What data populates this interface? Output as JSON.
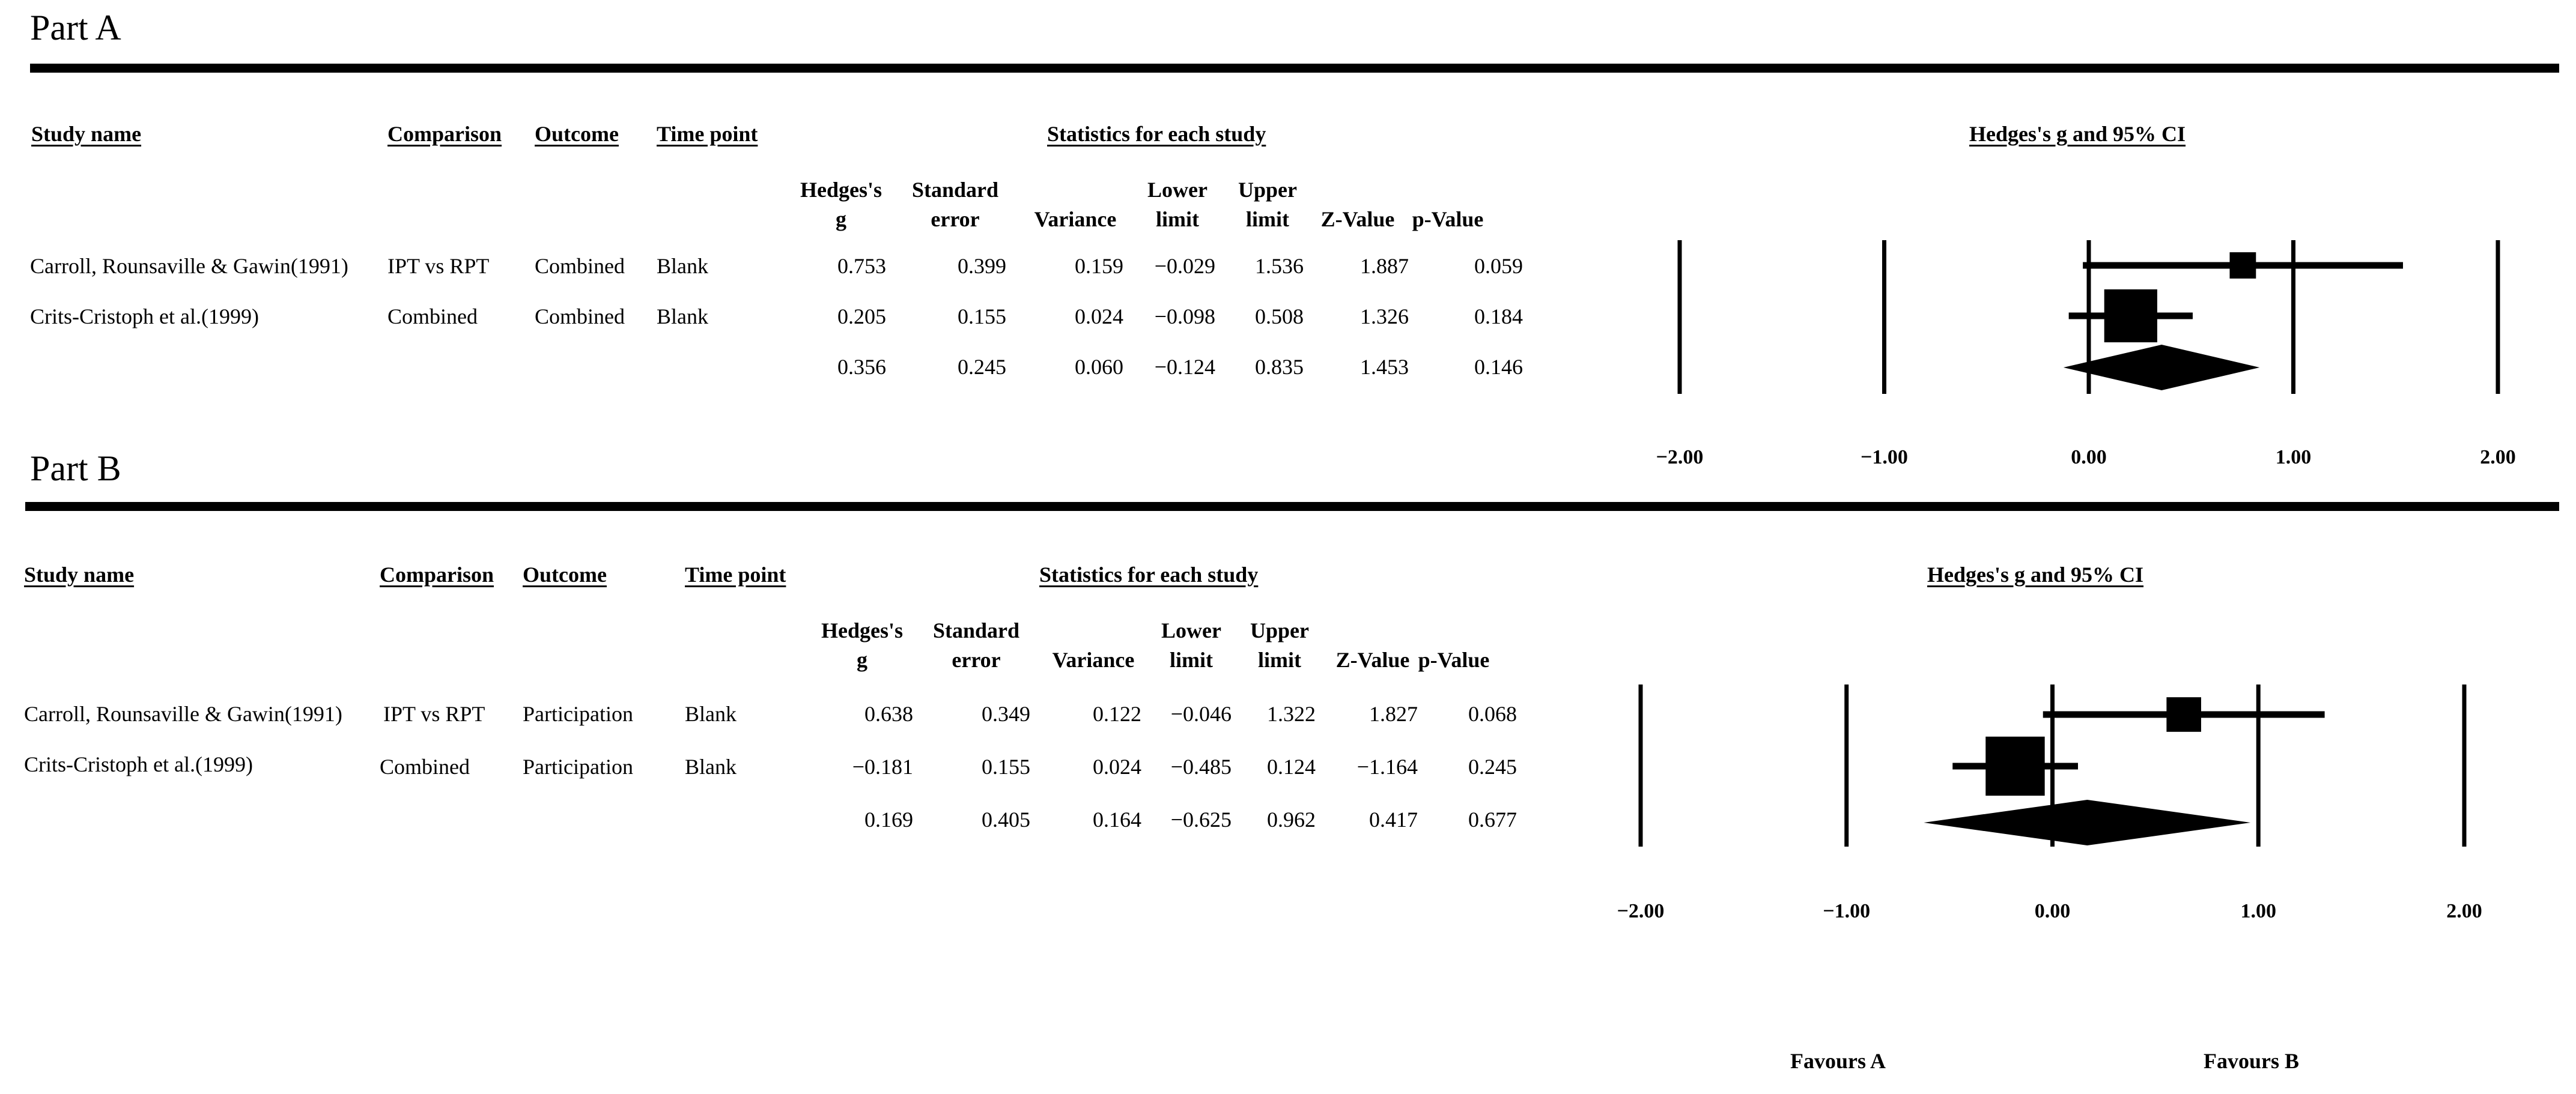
{
  "parts": [
    {
      "title": "Part A",
      "columns": {
        "study": "Study name",
        "comparison": "Comparison",
        "outcome": "Outcome",
        "time_point": "Time point",
        "statistics": "Statistics for each study",
        "plot": "Hedges's g and 95% CI"
      },
      "stat_headers": {
        "g": [
          "Hedges's",
          "g"
        ],
        "se": [
          "Standard",
          "error"
        ],
        "var": [
          "",
          "Variance"
        ],
        "lower": [
          "Lower",
          "limit"
        ],
        "upper": [
          "Upper",
          "limit"
        ],
        "z": [
          "",
          "Z-Value"
        ],
        "p": [
          "",
          "p-Value"
        ]
      },
      "rows": [
        {
          "study": "Carroll, Rounsaville & Gawin(1991)",
          "comparison": "IPT vs RPT",
          "outcome": "Combined",
          "time_point": "Blank",
          "g": "0.753",
          "se": "0.399",
          "var": "0.159",
          "lower": "−0.029",
          "upper": "1.536",
          "z": "1.887",
          "p": "0.059"
        },
        {
          "study": "Crits-Cristoph et al.(1999)",
          "comparison": "Combined",
          "outcome": "Combined",
          "time_point": "Blank",
          "g": "0.205",
          "se": "0.155",
          "var": "0.024",
          "lower": "−0.098",
          "upper": "0.508",
          "z": "1.326",
          "p": "0.184"
        },
        {
          "study": "",
          "comparison": "",
          "outcome": "",
          "time_point": "",
          "g": "0.356",
          "se": "0.245",
          "var": "0.060",
          "lower": "−0.124",
          "upper": "0.835",
          "z": "1.453",
          "p": "0.146"
        }
      ]
    },
    {
      "title": "Part B",
      "columns": {
        "study": "Study name",
        "comparison": "Comparison",
        "outcome": "Outcome",
        "time_point": "Time point",
        "statistics": "Statistics for each study",
        "plot": "Hedges's g and 95% CI"
      },
      "stat_headers": {
        "g": [
          "Hedges's",
          "g"
        ],
        "se": [
          "Standard",
          "error"
        ],
        "var": [
          "",
          "Variance"
        ],
        "lower": [
          "Lower",
          "limit"
        ],
        "upper": [
          "Upper",
          "limit"
        ],
        "z": [
          "",
          "Z-Value"
        ],
        "p": [
          "",
          "p-Value"
        ]
      },
      "rows": [
        {
          "study": "Carroll, Rounsaville & Gawin(1991)",
          "comparison": "IPT vs RPT",
          "outcome": "Participation",
          "time_point": "Blank",
          "g": "0.638",
          "se": "0.349",
          "var": "0.122",
          "lower": "−0.046",
          "upper": "1.322",
          "z": "1.827",
          "p": "0.068"
        },
        {
          "study": "Crits-Cristoph et al.(1999)",
          "comparison": "Combined",
          "outcome": "Participation",
          "time_point": "Blank",
          "g": "−0.181",
          "se": "0.155",
          "var": "0.024",
          "lower": "−0.485",
          "upper": "0.124",
          "z": "−1.164",
          "p": "0.245"
        },
        {
          "study": "",
          "comparison": "",
          "outcome": "",
          "time_point": "",
          "g": "0.169",
          "se": "0.405",
          "var": "0.164",
          "lower": "−0.625",
          "upper": "0.962",
          "z": "0.417",
          "p": "0.677"
        }
      ]
    }
  ],
  "chart_data": [
    {
      "type": "forest",
      "title": "Hedges's g and 95% CI",
      "xlim": [
        -2,
        2
      ],
      "ticks": [
        -2,
        -1,
        0,
        1,
        2
      ],
      "tick_labels": [
        "−2.00",
        "−1.00",
        "0.00",
        "1.00",
        "2.00"
      ],
      "studies": [
        {
          "g": 0.753,
          "lower": -0.029,
          "upper": 1.536,
          "weight": 0.13
        },
        {
          "g": 0.205,
          "lower": -0.098,
          "upper": 0.508,
          "weight": 0.87
        }
      ],
      "summary": {
        "g": 0.356,
        "lower": -0.124,
        "upper": 0.835
      }
    },
    {
      "type": "forest",
      "title": "Hedges's g and 95% CI",
      "xlim": [
        -2,
        2
      ],
      "ticks": [
        -2,
        -1,
        0,
        1,
        2
      ],
      "tick_labels": [
        "−2.00",
        "−1.00",
        "0.00",
        "1.00",
        "2.00"
      ],
      "studies": [
        {
          "g": 0.638,
          "lower": -0.046,
          "upper": 1.322,
          "weight": 0.16
        },
        {
          "g": -0.181,
          "lower": -0.485,
          "upper": 0.124,
          "weight": 0.84
        }
      ],
      "summary": {
        "g": 0.169,
        "lower": -0.625,
        "upper": 0.962
      }
    }
  ],
  "favours": {
    "left": "Favours A",
    "right": "Favours B"
  }
}
